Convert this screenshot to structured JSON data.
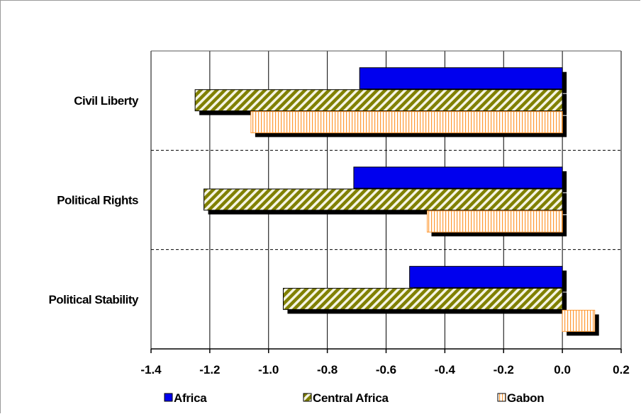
{
  "chart_data": {
    "type": "bar",
    "orientation": "horizontal",
    "title": "",
    "xlabel": "",
    "ylabel": "",
    "categories": [
      "Civil Liberty",
      "Political Rights",
      "Political Stability"
    ],
    "series": [
      {
        "name": "Africa",
        "values": [
          -0.69,
          -0.71,
          -0.52
        ],
        "color": "#0000ee",
        "pattern": "solid"
      },
      {
        "name": "Central Africa",
        "values": [
          -1.25,
          -1.22,
          -0.95
        ],
        "color": "#808000",
        "pattern": "diagonal-stripes"
      },
      {
        "name": "Gabon",
        "values": [
          -1.06,
          -0.46,
          0.11
        ],
        "color": "#ff9933",
        "pattern": "vertical-stripes"
      }
    ],
    "xlim": [
      -1.4,
      0.2
    ],
    "xticks": [
      "-1.4",
      "-1.2",
      "-1.0",
      "-0.8",
      "-0.6",
      "-0.4",
      "-0.2",
      "0.0",
      "0.2"
    ],
    "grid": true,
    "legend_position": "bottom"
  }
}
